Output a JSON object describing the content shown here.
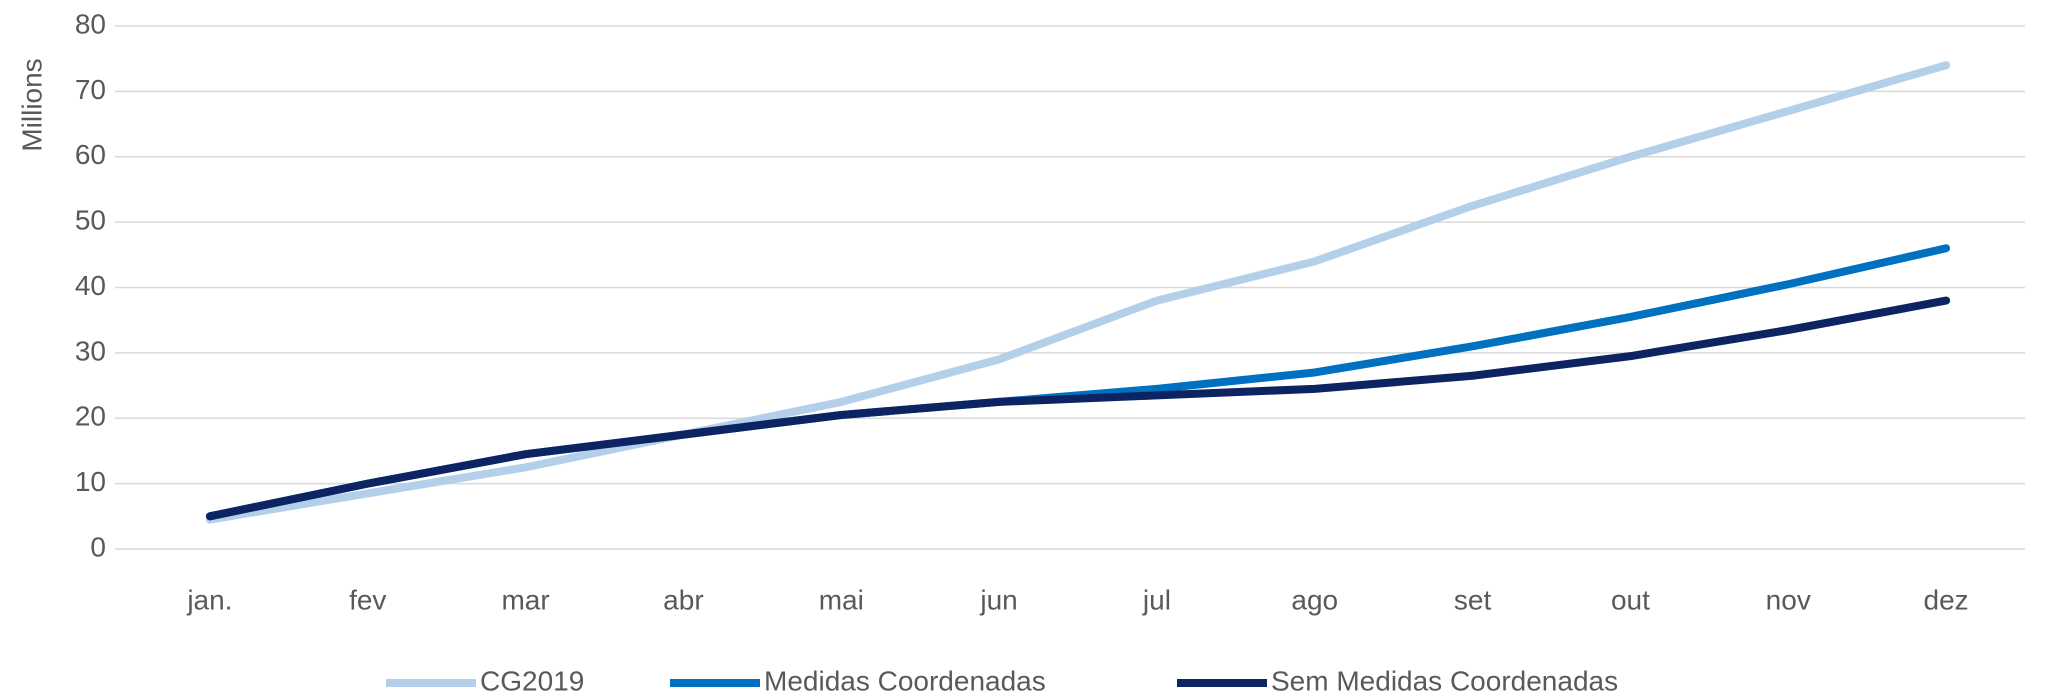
{
  "chart_data": {
    "type": "line",
    "y_label": "Millions",
    "categories": [
      "jan.",
      "fev",
      "mar",
      "abr",
      "mai",
      "jun",
      "jul",
      "ago",
      "set",
      "out",
      "nov",
      "dez"
    ],
    "series": [
      {
        "name": "CG2019",
        "color": "#b4cfea",
        "values": [
          4.5,
          8.5,
          12.5,
          17.5,
          22.5,
          29,
          38,
          44,
          52.5,
          60,
          67,
          74
        ]
      },
      {
        "name": "Medidas Coordenadas",
        "color": "#0070c0",
        "values": [
          5,
          10,
          14.5,
          17.5,
          20.5,
          22.5,
          24.5,
          27,
          31,
          35.5,
          40.5,
          46
        ]
      },
      {
        "name": "Sem Medidas Coordenadas",
        "color": "#0c2461",
        "values": [
          5,
          10,
          14.5,
          17.5,
          20.5,
          22.5,
          23.5,
          24.5,
          26.5,
          29.5,
          33.5,
          38
        ]
      }
    ],
    "ylim": [
      0,
      80
    ],
    "yticks": [
      0,
      10,
      20,
      30,
      40,
      50,
      60,
      70,
      80
    ],
    "grid": true,
    "legend": "bottom"
  }
}
